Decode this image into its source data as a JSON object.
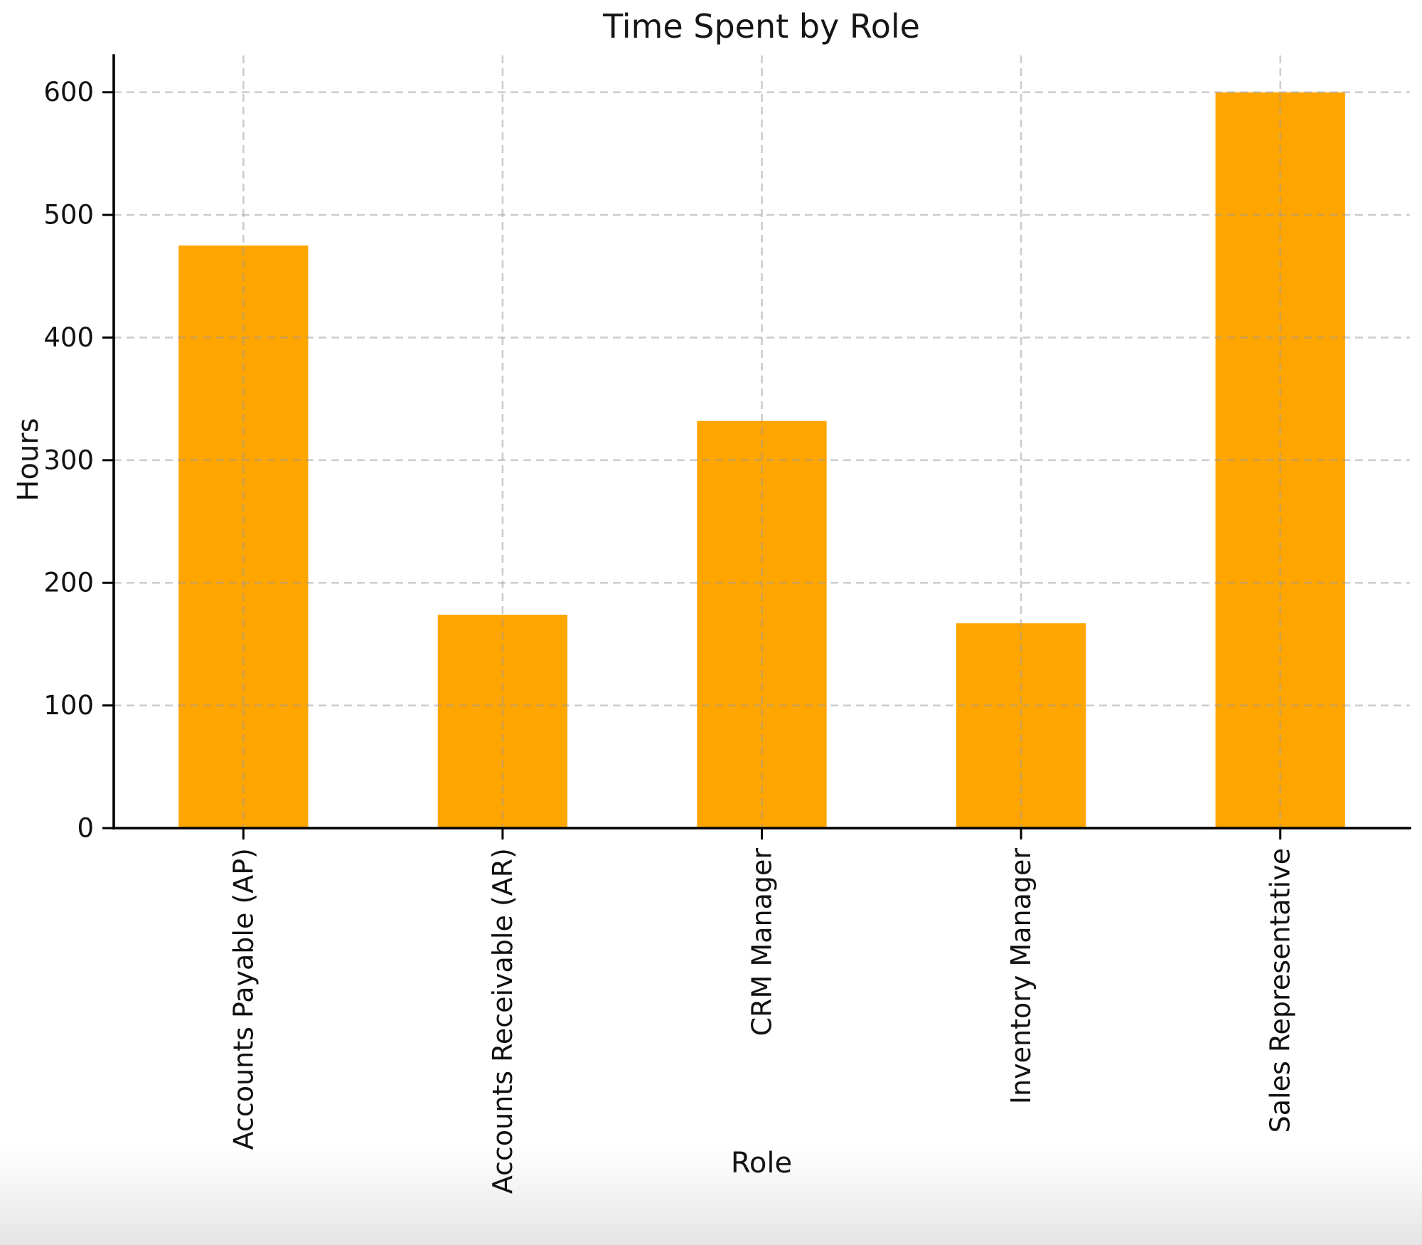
{
  "chart_data": {
    "type": "bar",
    "title": "Time Spent by Role",
    "xlabel": "Role",
    "ylabel": "Hours",
    "categories": [
      "Accounts Payable (AP)",
      "Accounts Receivable (AR)",
      "CRM Manager",
      "Inventory Manager",
      "Sales Representative"
    ],
    "values": [
      475,
      174,
      332,
      167,
      600
    ],
    "yticks": [
      0,
      100,
      200,
      300,
      400,
      500,
      600
    ],
    "ylim": [
      0,
      630
    ],
    "bar_color": "#ffa500",
    "grid": true,
    "grid_style": "dashed",
    "grid_color": "#c9c9c9",
    "axis_color": "#000000",
    "text_color": "#111111",
    "legend_position": "none",
    "bar_width_fraction": 0.5,
    "x_tick_rotation_deg": 90
  }
}
